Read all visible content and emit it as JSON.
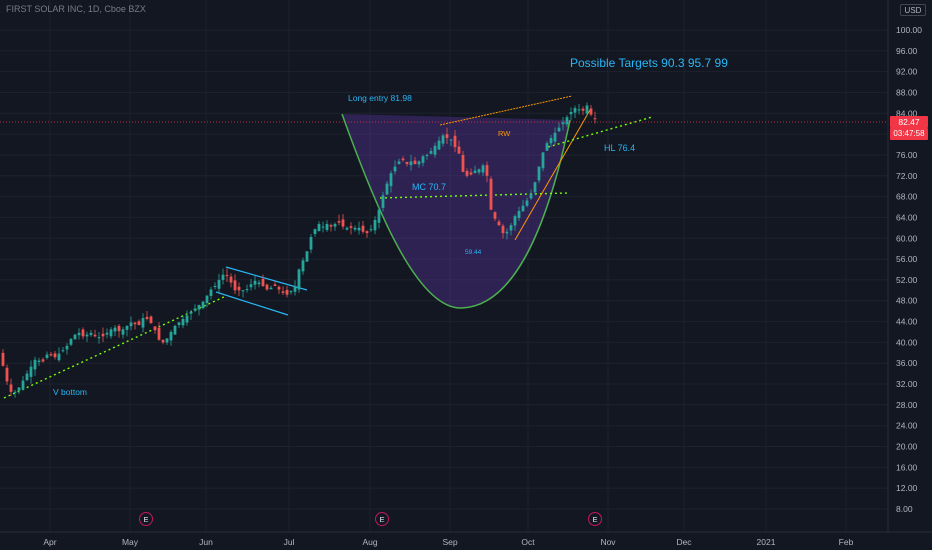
{
  "header": {
    "symbol_title": "FIRST SOLAR INC, 1D, Cboe BZX",
    "currency": "USD"
  },
  "price_badge": {
    "last_price": "82.47",
    "countdown": "03:47:58"
  },
  "colors": {
    "background": "#131722",
    "grid": "#1e222d",
    "up_candle": "#ef5350",
    "down_candle": "#26a69a",
    "annotation_text": "#29b6f6",
    "trendline": "#76ff03",
    "cup_outline": "#4caf50",
    "cup_fill": "#673ab7",
    "wedge": "#ff9800",
    "channel": "#29b6f6",
    "last_price_line": "#f23645",
    "earnings_ring": "#c2185b"
  },
  "annotations": {
    "possible_targets": "Possible Targets  90.3   95.7   99",
    "long_entry": "Long entry 81.98",
    "rw": "RW",
    "mc": "MC 70.7",
    "hl": "HL 76.4",
    "low_value": "59.44",
    "v_bottom": "V bottom"
  },
  "earnings_markers": [
    {
      "label": "E"
    },
    {
      "label": "E"
    },
    {
      "label": "E"
    }
  ],
  "chart_data": {
    "type": "candlestick",
    "title": "FIRST SOLAR INC, 1D, Cboe BZX",
    "y_range": [
      4,
      104
    ],
    "y_ticks": [
      "100.00",
      "96.00",
      "92.00",
      "88.00",
      "84.00",
      "80.00",
      "76.00",
      "72.00",
      "68.00",
      "64.00",
      "60.00",
      "56.00",
      "52.00",
      "48.00",
      "44.00",
      "40.00",
      "36.00",
      "32.00",
      "28.00",
      "24.00",
      "20.00",
      "16.00",
      "12.00",
      "8.00"
    ],
    "x_ticks": [
      "Apr",
      "May",
      "Jun",
      "Jul",
      "Aug",
      "Sep",
      "Oct",
      "Nov",
      "Dec",
      "2021",
      "Feb"
    ],
    "grid": true,
    "last_price": 82.47,
    "key_levels": {
      "long_entry": 81.98,
      "mc": 70.7,
      "hl": 76.4,
      "low": 59.44
    },
    "targets": [
      90.3,
      95.7,
      99
    ],
    "close_path": [
      [
        0,
        38
      ],
      [
        6,
        33
      ],
      [
        12,
        30
      ],
      [
        18,
        31
      ],
      [
        24,
        33
      ],
      [
        30,
        35
      ],
      [
        36,
        37
      ],
      [
        42,
        36
      ],
      [
        48,
        38
      ],
      [
        54,
        37
      ],
      [
        60,
        38
      ],
      [
        66,
        39
      ],
      [
        72,
        41
      ],
      [
        78,
        42
      ],
      [
        84,
        41
      ],
      [
        90,
        42
      ],
      [
        96,
        41
      ],
      [
        102,
        41
      ],
      [
        108,
        42
      ],
      [
        114,
        43
      ],
      [
        120,
        42
      ],
      [
        126,
        43
      ],
      [
        132,
        44
      ],
      [
        138,
        43
      ],
      [
        144,
        45
      ],
      [
        150,
        44
      ],
      [
        156,
        42
      ],
      [
        160,
        40
      ],
      [
        164,
        40
      ],
      [
        168,
        41
      ],
      [
        174,
        43
      ],
      [
        180,
        44
      ],
      [
        186,
        45
      ],
      [
        192,
        46
      ],
      [
        198,
        47
      ],
      [
        204,
        48
      ],
      [
        210,
        50
      ],
      [
        216,
        51
      ],
      [
        222,
        53
      ],
      [
        226,
        53
      ],
      [
        230,
        52
      ],
      [
        234,
        50
      ],
      [
        238,
        50
      ],
      [
        242,
        50
      ],
      [
        246,
        50
      ],
      [
        250,
        51
      ],
      [
        256,
        52
      ],
      [
        262,
        51
      ],
      [
        268,
        50
      ],
      [
        274,
        51
      ],
      [
        280,
        50
      ],
      [
        286,
        49
      ],
      [
        292,
        50
      ],
      [
        296,
        51
      ],
      [
        300,
        55
      ],
      [
        304,
        56
      ],
      [
        308,
        58
      ],
      [
        312,
        61
      ],
      [
        316,
        62
      ],
      [
        320,
        63
      ],
      [
        324,
        62
      ],
      [
        328,
        63
      ],
      [
        332,
        62
      ],
      [
        336,
        63
      ],
      [
        340,
        63
      ],
      [
        344,
        62
      ],
      [
        350,
        62
      ],
      [
        356,
        62
      ],
      [
        360,
        62
      ],
      [
        364,
        61
      ],
      [
        368,
        61
      ],
      [
        372,
        62
      ],
      [
        376,
        64
      ],
      [
        380,
        66
      ],
      [
        384,
        69
      ],
      [
        388,
        71
      ],
      [
        392,
        73
      ],
      [
        396,
        74
      ],
      [
        400,
        75
      ],
      [
        404,
        75
      ],
      [
        408,
        74
      ],
      [
        412,
        75
      ],
      [
        416,
        74
      ],
      [
        420,
        75
      ],
      [
        424,
        76
      ],
      [
        428,
        76
      ],
      [
        432,
        77
      ],
      [
        436,
        78
      ],
      [
        440,
        79
      ],
      [
        444,
        80
      ],
      [
        448,
        79
      ],
      [
        452,
        79
      ],
      [
        456,
        77
      ],
      [
        460,
        76
      ],
      [
        462,
        73
      ],
      [
        466,
        72
      ],
      [
        470,
        72
      ],
      [
        474,
        73
      ],
      [
        478,
        73
      ],
      [
        482,
        74
      ],
      [
        486,
        74
      ],
      [
        490,
        66
      ],
      [
        494,
        64
      ],
      [
        498,
        63
      ],
      [
        502,
        61
      ],
      [
        506,
        61
      ],
      [
        510,
        62
      ],
      [
        514,
        64
      ],
      [
        518,
        65
      ],
      [
        522,
        66
      ],
      [
        526,
        67
      ],
      [
        530,
        68
      ],
      [
        534,
        70
      ],
      [
        538,
        73
      ],
      [
        542,
        76
      ],
      [
        546,
        78
      ],
      [
        550,
        79
      ],
      [
        554,
        80
      ],
      [
        558,
        81
      ],
      [
        562,
        82
      ],
      [
        566,
        83
      ],
      [
        570,
        84
      ],
      [
        574,
        85
      ],
      [
        578,
        85
      ],
      [
        582,
        84
      ],
      [
        586,
        86
      ],
      [
        590,
        84
      ],
      [
        594,
        83
      ],
      [
        598,
        82.47
      ]
    ]
  }
}
